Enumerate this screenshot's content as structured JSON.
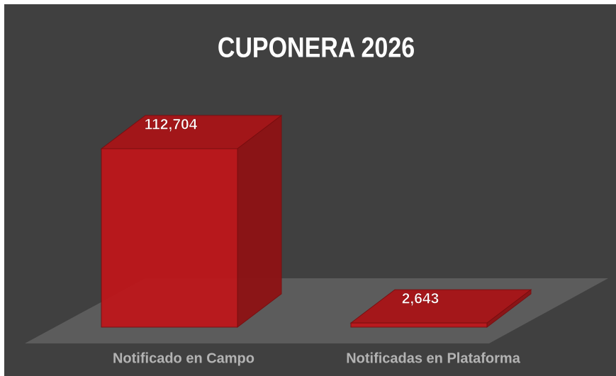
{
  "chart_data": {
    "type": "bar3d",
    "title": "CUPONERA 2026",
    "categories": [
      "Notificado en Campo",
      "Notificadas en Plataforma"
    ],
    "values": [
      112704,
      2643
    ],
    "value_labels": [
      "112,704",
      "2,643"
    ],
    "color": "#c0161a"
  }
}
